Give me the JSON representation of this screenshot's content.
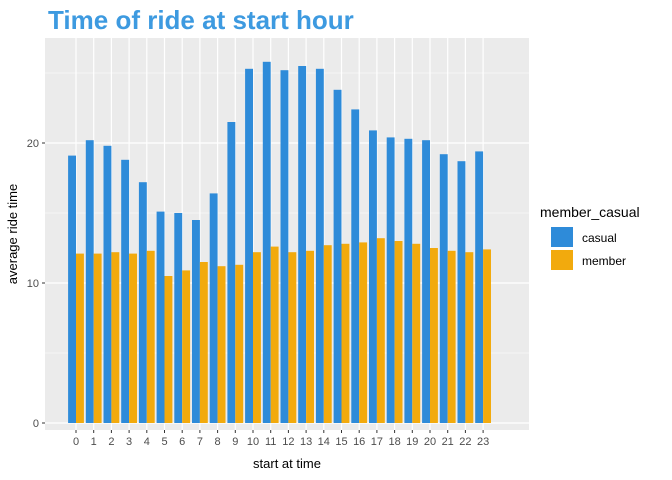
{
  "chart_data": {
    "type": "bar",
    "title": "Time of ride at start hour",
    "xlabel": "start at time",
    "ylabel": "average ride time",
    "categories": [
      "0",
      "1",
      "2",
      "3",
      "4",
      "5",
      "6",
      "7",
      "8",
      "9",
      "10",
      "11",
      "12",
      "13",
      "14",
      "15",
      "16",
      "17",
      "18",
      "19",
      "20",
      "21",
      "22",
      "23"
    ],
    "series": [
      {
        "name": "casual",
        "values": [
          19.1,
          20.2,
          19.8,
          18.8,
          17.2,
          15.1,
          15.0,
          14.5,
          16.4,
          21.5,
          25.3,
          25.8,
          25.2,
          25.5,
          25.3,
          23.8,
          22.4,
          20.9,
          20.4,
          20.3,
          20.2,
          19.2,
          18.7,
          19.4
        ]
      },
      {
        "name": "member",
        "values": [
          12.1,
          12.1,
          12.2,
          12.1,
          12.3,
          10.5,
          10.9,
          11.5,
          11.2,
          11.3,
          12.2,
          12.6,
          12.2,
          12.3,
          12.7,
          12.8,
          12.9,
          13.2,
          13.0,
          12.8,
          12.5,
          12.3,
          12.2,
          12.4
        ]
      }
    ],
    "ylim": [
      -0.5,
      27.5
    ],
    "yticks": [
      0,
      10,
      20
    ],
    "grid": true,
    "legend": {
      "title": "member_casual",
      "placement": "right"
    },
    "colors": {
      "casual": "#2E8BD9",
      "member": "#F2AA0D",
      "title": "#3D9AE0",
      "panel": "#EBEBEB",
      "grid": "#FFFFFF"
    }
  }
}
